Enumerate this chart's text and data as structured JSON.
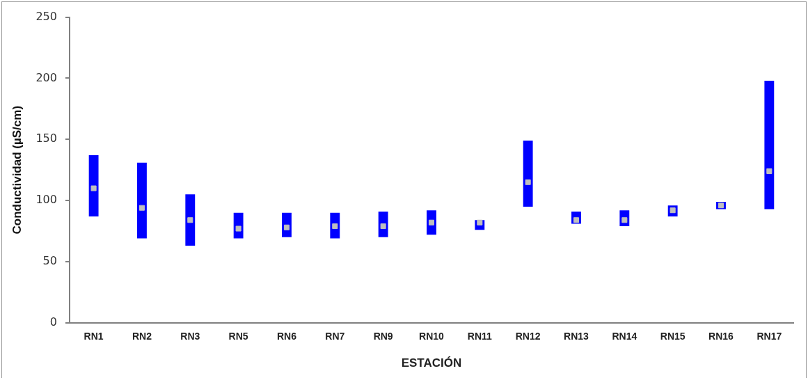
{
  "chart_data": {
    "type": "bar",
    "xlabel": "ESTACIÓN",
    "ylabel": "Conductividad (µS/cm)",
    "categories": [
      "RN1",
      "RN2",
      "RN3",
      "RN5",
      "RN6",
      "RN7",
      "RN9",
      "RN10",
      "RN11",
      "RN12",
      "RN13",
      "RN14",
      "RN15",
      "RN16",
      "RN17"
    ],
    "series": [
      {
        "color": "#0000ff",
        "base": [
          87,
          69,
          63,
          69,
          70,
          69,
          70,
          72,
          76,
          95,
          81,
          79,
          87,
          93,
          93
        ],
        "values": [
          50,
          62,
          42,
          21,
          20,
          21,
          21,
          20,
          8,
          54,
          10,
          13,
          9,
          6,
          105
        ]
      },
      {
        "type": "scatter",
        "color": "#bfbfbf",
        "marker": "square",
        "x": [
          "RN1",
          "RN2",
          "RN3",
          "RN5",
          "RN6",
          "RN7",
          "RN9",
          "RN10",
          "RN11",
          "RN12",
          "RN13",
          "RN14",
          "RN15",
          "RN16",
          "RN17"
        ],
        "values": [
          110,
          94,
          84,
          77,
          78,
          79,
          79,
          82,
          82,
          115,
          84,
          84,
          92,
          96,
          124
        ]
      }
    ],
    "ylim": [
      0,
      250
    ],
    "yticks": [
      0,
      50,
      100,
      150,
      200,
      250
    ],
    "grid": false,
    "legend": false
  }
}
